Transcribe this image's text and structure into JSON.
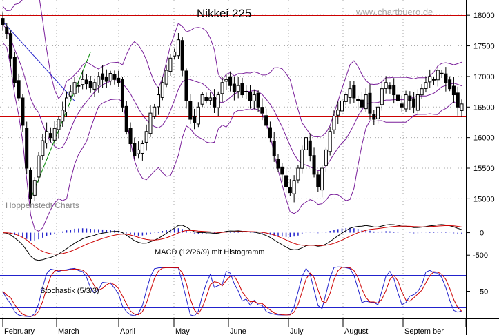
{
  "chart_data": [
    {
      "type": "candlestick",
      "title": "Nikkei 225",
      "source": "www.chartbuero.de",
      "watermark": "Hoppenstedt Charts",
      "ylim": [
        14700,
        18250
      ],
      "yticks": [
        15000,
        15500,
        16000,
        16500,
        17000,
        17500,
        18000
      ],
      "horizontal_lines": [
        18000,
        16900,
        16350,
        15800,
        15150
      ],
      "months": [
        "February",
        "March",
        "April",
        "May",
        "June",
        "July",
        "August",
        "Septem ber"
      ],
      "indicators": [
        "Bollinger Bands",
        "trend lines"
      ],
      "close_series": [
        17850,
        17700,
        17300,
        16900,
        16650,
        16200,
        15500,
        15000,
        15300,
        15700,
        15950,
        16100,
        16000,
        16150,
        16300,
        16450,
        16650,
        16750,
        16900,
        16850,
        16950,
        16880,
        16820,
        16900,
        17000,
        16950,
        16920,
        17050,
        16950,
        16900,
        16500,
        16100,
        15900,
        15700,
        15800,
        15900,
        16100,
        16400,
        16500,
        16700,
        16900,
        17100,
        17300,
        17400,
        17600,
        17100,
        16600,
        16300,
        16250,
        16500,
        16700,
        16600,
        16650,
        16500,
        16700,
        16900,
        16950,
        16850,
        16750,
        16850,
        16700,
        16750,
        16600,
        16700,
        16500,
        16400,
        16200,
        16000,
        15700,
        15500,
        15400,
        15200,
        15100,
        15300,
        15500,
        15800,
        16000,
        15700,
        15400,
        15200,
        15500,
        15800,
        16100,
        16350,
        16450,
        16600,
        16700,
        16800,
        16650,
        16600,
        16500,
        16700,
        16400,
        16300,
        16500,
        16800,
        16900,
        16800,
        16700,
        16600,
        16500,
        16700,
        16600,
        16500,
        16700,
        16800,
        16900,
        17000,
        16950,
        17100,
        17050,
        16900,
        16800,
        16700,
        16500,
        16550
      ]
    },
    {
      "type": "line",
      "title": "MACD (12/26/9) mit Histogramm",
      "ylim": [
        -650,
        300
      ],
      "yticks": [
        0,
        -500
      ]
    },
    {
      "type": "line",
      "title": "Stochastik  (5/3/3)",
      "ylim": [
        0,
        100
      ],
      "yticks": [
        50
      ],
      "horizontal_lines": [
        80,
        20
      ]
    }
  ],
  "colors": {
    "up_candle": "#ffffff",
    "down_candle": "#000000",
    "bands": "#7a1f9a",
    "hline": "#cc0000",
    "trend_blue": "#2222cc",
    "trend_green": "#008800",
    "signal_red": "#cc0000",
    "stoch_blue": "#2222cc",
    "grid": "#aaaaaa"
  }
}
